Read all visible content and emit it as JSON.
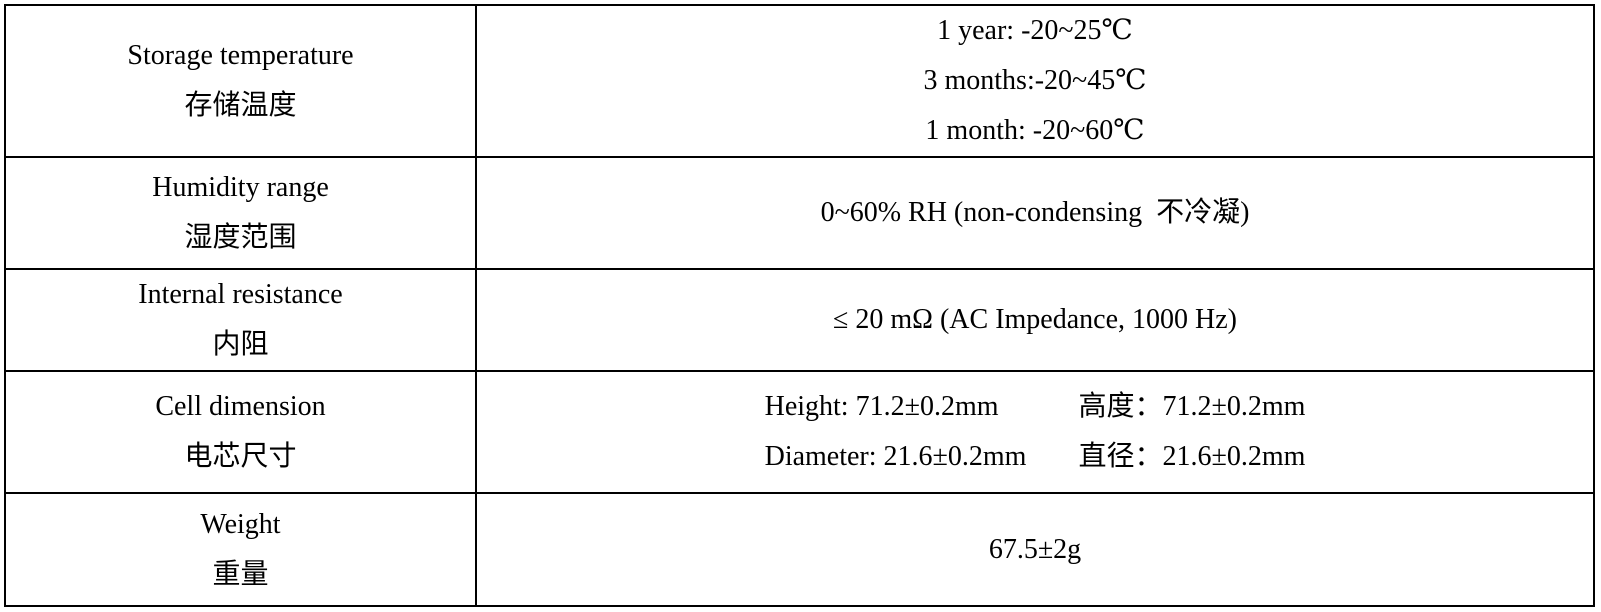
{
  "table": {
    "rows": [
      {
        "label_en": "Storage temperature",
        "label_zh": "存储温度",
        "values": [
          "1 year: -20~25℃",
          "3 months:-20~45℃",
          "1 month: -20~60℃"
        ]
      },
      {
        "label_en": "Humidity range",
        "label_zh": "湿度范围",
        "values": [
          "0~60% RH (non-condensing  不冷凝)"
        ]
      },
      {
        "label_en": "Internal resistance",
        "label_zh": "内阻",
        "values": [
          "≤ 20 mΩ (AC Impedance, 1000 Hz)"
        ]
      },
      {
        "label_en": "Cell dimension",
        "label_zh": "电芯尺寸",
        "height_en": "Height: 71.2±0.2mm",
        "height_zh": "高度：71.2±0.2mm",
        "diameter_en": "Diameter: 21.6±0.2mm",
        "diameter_zh": "直径：21.6±0.2mm"
      },
      {
        "label_en": "Weight",
        "label_zh": "重量",
        "values": [
          "67.5±2g"
        ]
      }
    ]
  }
}
